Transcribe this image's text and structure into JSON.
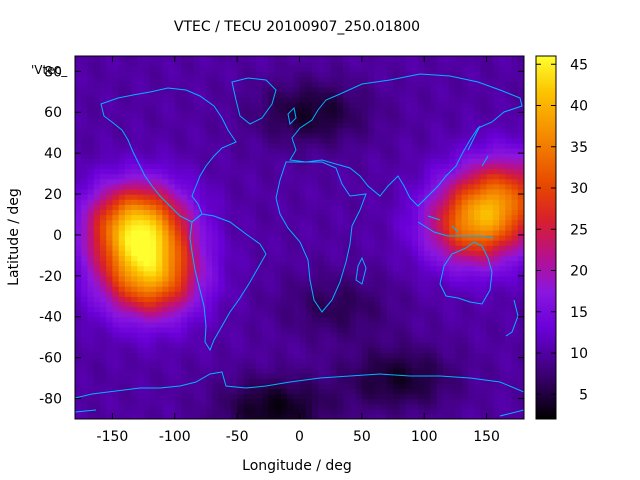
{
  "chart_data": {
    "type": "heatmap",
    "title": "VTEC / TECU 20100907_250.01800",
    "xlabel": "Longitude / deg",
    "ylabel": "Latitude / deg",
    "legend_key": "'Vtec_",
    "xlim": [
      -180,
      180
    ],
    "ylim": [
      -90,
      87.5
    ],
    "xticks": [
      -150,
      -100,
      -50,
      0,
      50,
      100,
      150
    ],
    "yticks": [
      -80,
      -60,
      -40,
      -20,
      0,
      20,
      40,
      60,
      80
    ],
    "colorbar": {
      "range": [
        2,
        46
      ],
      "ticks": [
        5,
        10,
        15,
        20,
        25,
        30,
        35,
        40,
        45
      ],
      "palette": "black-purple-red-orange-yellow"
    },
    "coastline_color": "#00b4ff",
    "grid": false,
    "data_sample": {
      "description_scale": "VTEC",
      "hotspots": [
        {
          "lon": -130,
          "lat": 5,
          "peak": 40
        },
        {
          "lon": -120,
          "lat": -20,
          "peak": 36
        },
        {
          "lon": 140,
          "lat": 5,
          "peak": 32
        },
        {
          "lon": 165,
          "lat": 20,
          "peak": 27
        }
      ],
      "background": 10,
      "minimum_regions": [
        {
          "lon": 10,
          "lat": 60,
          "value": 4
        },
        {
          "lon": 30,
          "lat": -35,
          "value": 6
        },
        {
          "lon": 80,
          "lat": -70,
          "value": 4
        },
        {
          "lon": -20,
          "lat": -85,
          "value": 3
        }
      ]
    }
  }
}
